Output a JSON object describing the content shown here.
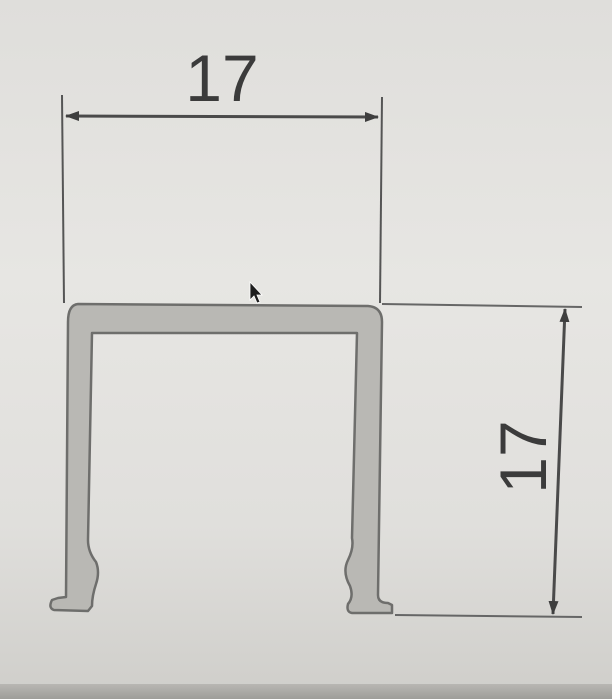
{
  "diagram": {
    "width_dimension": {
      "value": "17"
    },
    "height_dimension": {
      "value": "17"
    },
    "colors": {
      "line": "#4a4a4a",
      "profile_fill": "#b9b8b4",
      "profile_stroke": "#6e6e6c",
      "text": "#3b3b3b"
    }
  }
}
